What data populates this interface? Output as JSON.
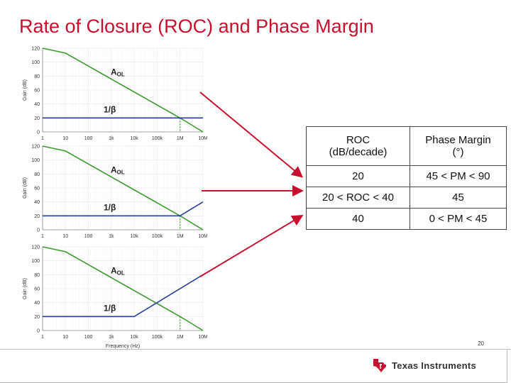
{
  "slide": {
    "title": "Rate of Closure (ROC) and Phase Margin",
    "page_number": "20"
  },
  "colors": {
    "title": "#c8102e",
    "aol_curve": "#3a9a2c",
    "beta_curve": "#2a3fa0",
    "arrows": "#c8102e",
    "marker": "#3a9a2c"
  },
  "plots": {
    "y_axis_label": "Gain (dB)",
    "x_axis_label": "Frequency (Hz)",
    "y_ticks": [
      "0",
      "20",
      "40",
      "60",
      "80",
      "100",
      "120"
    ],
    "x_ticks": [
      "1",
      "10",
      "100",
      "1k",
      "10k",
      "100k",
      "1M",
      "10M"
    ],
    "aol_label": "A",
    "aol_subscript": "OL",
    "beta_label": "1/β"
  },
  "chart_data": [
    {
      "type": "line",
      "xscale": "log",
      "ylabel": "Gain (dB)",
      "ylim": [
        0,
        120
      ],
      "series": [
        {
          "name": "AOL",
          "x": [
            1,
            10,
            1000000,
            10000000
          ],
          "y": [
            120,
            113,
            20,
            0
          ]
        },
        {
          "name": "1/β",
          "x": [
            1,
            10000000
          ],
          "y": [
            20,
            20
          ]
        }
      ]
    },
    {
      "type": "line",
      "xscale": "log",
      "ylabel": "Gain (dB)",
      "ylim": [
        0,
        120
      ],
      "series": [
        {
          "name": "AOL",
          "x": [
            1,
            10,
            1000000,
            10000000
          ],
          "y": [
            120,
            113,
            20,
            0
          ]
        },
        {
          "name": "1/β",
          "x": [
            1,
            1000000,
            10000000
          ],
          "y": [
            20,
            20,
            40
          ]
        }
      ]
    },
    {
      "type": "line",
      "xscale": "log",
      "xlabel": "Frequency (Hz)",
      "ylabel": "Gain (dB)",
      "ylim": [
        0,
        120
      ],
      "series": [
        {
          "name": "AOL",
          "x": [
            1,
            10,
            1000000,
            10000000
          ],
          "y": [
            120,
            113,
            20,
            0
          ]
        },
        {
          "name": "1/β",
          "x": [
            1,
            10000,
            10000000
          ],
          "y": [
            20,
            20,
            80
          ]
        }
      ]
    }
  ],
  "table": {
    "headers": [
      "ROC\n(dB/decade)",
      "Phase Margin\n(°)"
    ],
    "header_lines": [
      [
        "ROC",
        "(dB/decade)"
      ],
      [
        "Phase Margin",
        "(°)"
      ]
    ],
    "rows": [
      [
        "20",
        "45 < PM < 90"
      ],
      [
        "20 < ROC < 40",
        "45"
      ],
      [
        "40",
        "0 < PM < 45"
      ]
    ]
  },
  "logo": {
    "text": "Texas Instruments"
  }
}
